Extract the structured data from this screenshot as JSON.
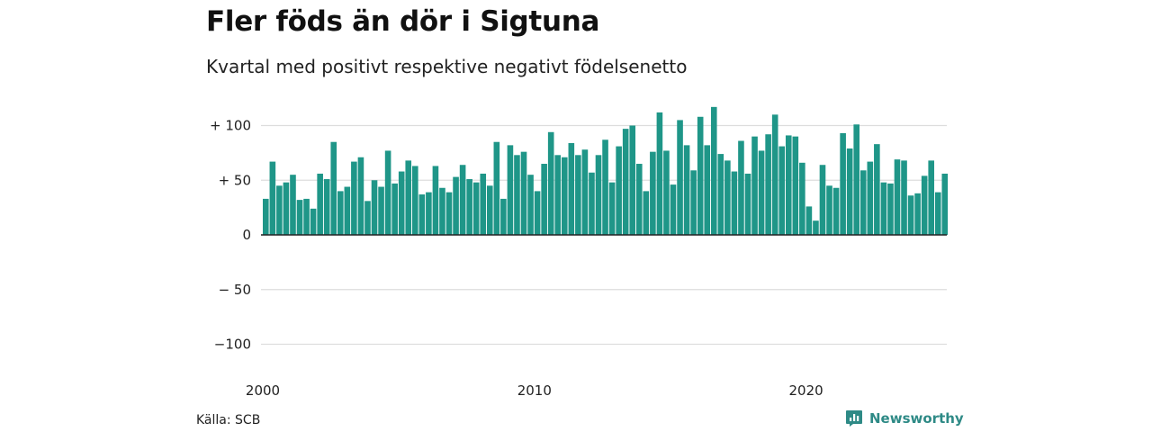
{
  "header": {
    "title": "Fler föds än dör i Sigtuna",
    "subtitle": "Kvartal med positivt respektive negativt födelsenetto"
  },
  "footer": {
    "source": "Källa: SCB",
    "brand": "Newsworthy",
    "brand_icon": "bar-chart-logo-icon"
  },
  "colors": {
    "bar": "#1f9688",
    "grid": "#dddddd",
    "baseline": "#222222",
    "brand": "#2e8a86"
  },
  "chart_data": {
    "type": "bar",
    "ylim": [
      -100,
      120
    ],
    "yticks": [
      100,
      50,
      0,
      -50,
      -100
    ],
    "ytick_labels": [
      "+ 100",
      "+  50",
      "0",
      "− 50",
      "−100"
    ],
    "xtick_labels": [
      "2000",
      "2010",
      "2020"
    ],
    "x_start": "2000 Q1",
    "values": [
      33,
      67,
      45,
      48,
      55,
      32,
      33,
      24,
      56,
      51,
      85,
      40,
      44,
      67,
      71,
      31,
      50,
      44,
      77,
      47,
      58,
      68,
      63,
      37,
      39,
      63,
      43,
      39,
      53,
      64,
      51,
      48,
      56,
      45,
      85,
      33,
      82,
      73,
      76,
      55,
      40,
      65,
      94,
      73,
      71,
      84,
      73,
      78,
      57,
      73,
      87,
      48,
      81,
      97,
      100,
      65,
      40,
      76,
      112,
      77,
      46,
      105,
      82,
      59,
      108,
      82,
      117,
      74,
      68,
      58,
      86,
      56,
      90,
      77,
      92,
      110,
      81,
      91,
      90,
      66,
      26,
      13,
      64,
      45,
      43,
      93,
      79,
      101,
      59,
      67,
      83,
      48,
      47,
      69,
      68,
      36,
      38,
      54,
      68,
      39,
      56
    ]
  }
}
